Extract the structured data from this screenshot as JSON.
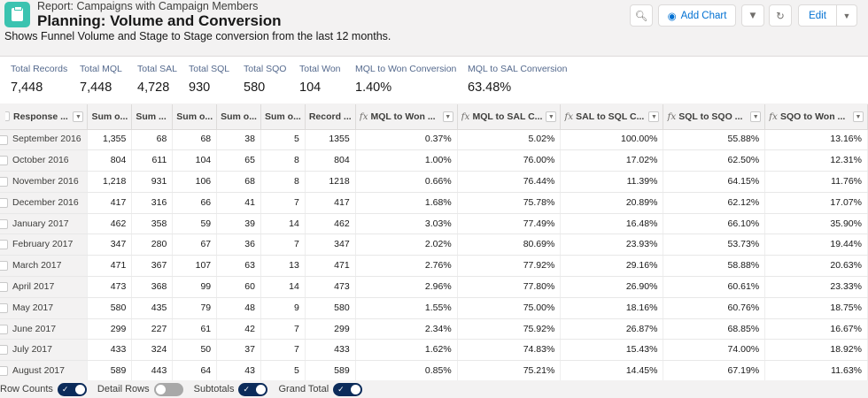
{
  "header": {
    "breadcrumb": "Report: Campaigns with Campaign Members",
    "title": "Planning: Volume and Conversion",
    "description": "Shows Funnel Volume and Stage to Stage conversion from the last 12 months.",
    "add_chart": "Add Chart",
    "edit": "Edit"
  },
  "summary": [
    {
      "label": "Total Records",
      "value": "7,448"
    },
    {
      "label": "Total MQL",
      "value": "7,448"
    },
    {
      "label": "Total SAL",
      "value": "4,728"
    },
    {
      "label": "Total SQL",
      "value": "930"
    },
    {
      "label": "Total SQO",
      "value": "580"
    },
    {
      "label": "Total Won",
      "value": "104"
    },
    {
      "label": "MQL to Won Conversion",
      "value": "1.40%"
    },
    {
      "label": "MQL to SAL Conversion",
      "value": "63.48%"
    }
  ],
  "table": {
    "columns": [
      {
        "label": "Response ...",
        "fx": false,
        "dropdown": true
      },
      {
        "label": "Sum o...",
        "fx": false,
        "dropdown": false
      },
      {
        "label": "Sum ...",
        "fx": false,
        "dropdown": false
      },
      {
        "label": "Sum o...",
        "fx": false,
        "dropdown": false
      },
      {
        "label": "Sum o...",
        "fx": false,
        "dropdown": false
      },
      {
        "label": "Sum o...",
        "fx": false,
        "dropdown": false
      },
      {
        "label": "Record ...",
        "fx": false,
        "dropdown": false
      },
      {
        "label": "MQL to Won ...",
        "fx": true,
        "dropdown": true
      },
      {
        "label": "MQL to SAL C...",
        "fx": true,
        "dropdown": true
      },
      {
        "label": "SAL to SQL C...",
        "fx": true,
        "dropdown": true
      },
      {
        "label": "SQL to SQO ...",
        "fx": true,
        "dropdown": true
      },
      {
        "label": "SQO to Won ...",
        "fx": true,
        "dropdown": true
      }
    ],
    "rows": [
      [
        "September 2016",
        "1,355",
        "68",
        "68",
        "38",
        "5",
        "1355",
        "0.37%",
        "5.02%",
        "100.00%",
        "55.88%",
        "13.16%"
      ],
      [
        "October 2016",
        "804",
        "611",
        "104",
        "65",
        "8",
        "804",
        "1.00%",
        "76.00%",
        "17.02%",
        "62.50%",
        "12.31%"
      ],
      [
        "November 2016",
        "1,218",
        "931",
        "106",
        "68",
        "8",
        "1218",
        "0.66%",
        "76.44%",
        "11.39%",
        "64.15%",
        "11.76%"
      ],
      [
        "December 2016",
        "417",
        "316",
        "66",
        "41",
        "7",
        "417",
        "1.68%",
        "75.78%",
        "20.89%",
        "62.12%",
        "17.07%"
      ],
      [
        "January 2017",
        "462",
        "358",
        "59",
        "39",
        "14",
        "462",
        "3.03%",
        "77.49%",
        "16.48%",
        "66.10%",
        "35.90%"
      ],
      [
        "February 2017",
        "347",
        "280",
        "67",
        "36",
        "7",
        "347",
        "2.02%",
        "80.69%",
        "23.93%",
        "53.73%",
        "19.44%"
      ],
      [
        "March 2017",
        "471",
        "367",
        "107",
        "63",
        "13",
        "471",
        "2.76%",
        "77.92%",
        "29.16%",
        "58.88%",
        "20.63%"
      ],
      [
        "April 2017",
        "473",
        "368",
        "99",
        "60",
        "14",
        "473",
        "2.96%",
        "77.80%",
        "26.90%",
        "60.61%",
        "23.33%"
      ],
      [
        "May 2017",
        "580",
        "435",
        "79",
        "48",
        "9",
        "580",
        "1.55%",
        "75.00%",
        "18.16%",
        "60.76%",
        "18.75%"
      ],
      [
        "June 2017",
        "299",
        "227",
        "61",
        "42",
        "7",
        "299",
        "2.34%",
        "75.92%",
        "26.87%",
        "68.85%",
        "16.67%"
      ],
      [
        "July 2017",
        "433",
        "324",
        "50",
        "37",
        "7",
        "433",
        "1.62%",
        "74.83%",
        "15.43%",
        "74.00%",
        "18.92%"
      ],
      [
        "August 2017",
        "589",
        "443",
        "64",
        "43",
        "5",
        "589",
        "0.85%",
        "75.21%",
        "14.45%",
        "67.19%",
        "11.63%"
      ]
    ]
  },
  "footer": [
    {
      "label": "Row Counts",
      "on": true
    },
    {
      "label": "Detail Rows",
      "on": false
    },
    {
      "label": "Subtotals",
      "on": true
    },
    {
      "label": "Grand Total",
      "on": true
    }
  ]
}
